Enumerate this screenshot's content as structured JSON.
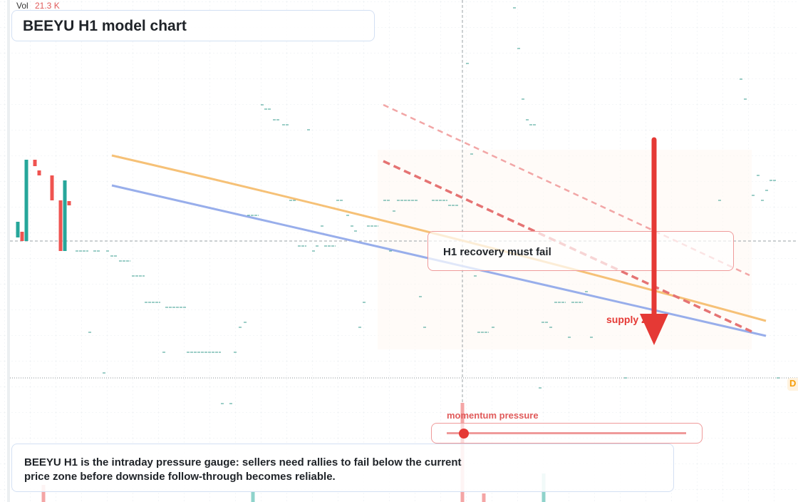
{
  "header": {
    "vol_label": "Vol",
    "vol_value": "21.3 K",
    "title": "BEEYU H1 model chart"
  },
  "annotations": {
    "callout": "H1 recovery must fail",
    "zone": "supply zone",
    "gauge": "momentum pressure",
    "edge_tag": "D"
  },
  "footer": {
    "text": "BEEYU H1 is the intraday pressure gauge: sellers need rallies to fail below the current price zone before downside follow-through becomes reliable."
  }
}
